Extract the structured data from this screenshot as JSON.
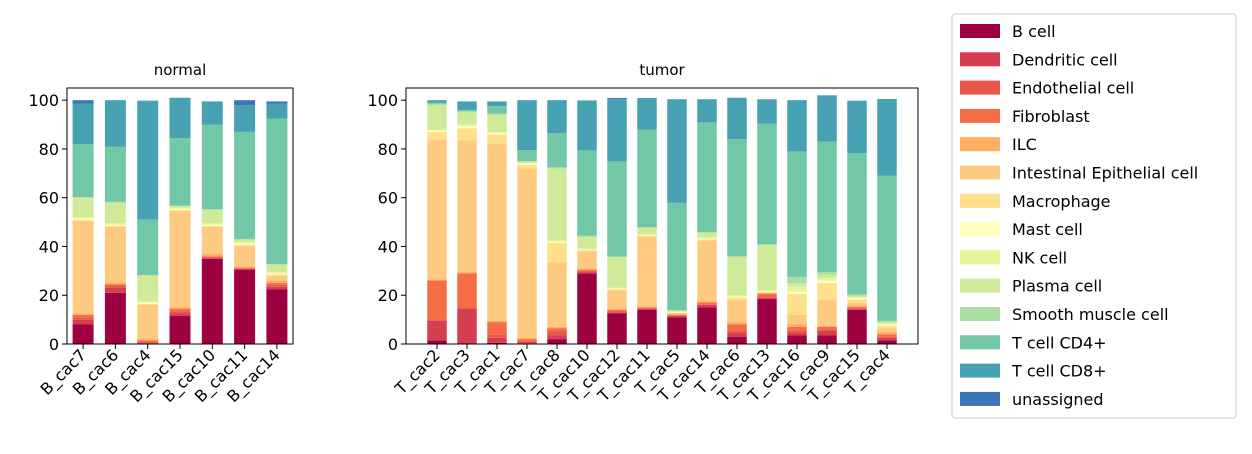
{
  "chart_data": [
    {
      "type": "bar",
      "stacked": true,
      "title": "normal",
      "xlabel": "",
      "ylabel": "",
      "ylim": [
        0,
        105
      ],
      "yticks": [
        0,
        20,
        40,
        60,
        80,
        100
      ],
      "grid": false,
      "categories": [
        "B_cac7",
        "B_cac6",
        "B_cac4",
        "B_cac15",
        "B_cac10",
        "B_cac11",
        "B_cac14"
      ],
      "series": [
        {
          "name": "B cell",
          "values": [
            8,
            21,
            0.3,
            11.5,
            35,
            30.5,
            22.5
          ]
        },
        {
          "name": "Dendritic cell",
          "values": [
            2,
            2,
            0,
            1,
            0,
            0.3,
            1
          ]
        },
        {
          "name": "Endothelial cell",
          "values": [
            1,
            1,
            0.5,
            1,
            0.5,
            0.2,
            1
          ]
        },
        {
          "name": "Fibroblast",
          "values": [
            1,
            0.5,
            0.7,
            1,
            0.5,
            0.3,
            0.5
          ]
        },
        {
          "name": "ILC",
          "values": [
            0.5,
            0.5,
            0.5,
            0.5,
            1,
            0.5,
            1
          ]
        },
        {
          "name": "Intestinal Epithelial cell",
          "values": [
            38,
            23,
            14,
            39.5,
            11,
            8.5,
            2
          ]
        },
        {
          "name": "Macrophage",
          "values": [
            0.5,
            0.5,
            0.5,
            0.5,
            0.5,
            0.5,
            0.5
          ]
        },
        {
          "name": "Mast cell",
          "values": [
            0.5,
            0.5,
            0.5,
            0.5,
            0.5,
            0.5,
            0.5
          ]
        },
        {
          "name": "NK cell",
          "values": [
            0.5,
            0.5,
            0.5,
            0.5,
            0.5,
            0.5,
            0.5
          ]
        },
        {
          "name": "Plasma cell",
          "values": [
            8,
            8.5,
            10.5,
            0.5,
            5.5,
            1,
            3
          ]
        },
        {
          "name": "Smooth muscle cell",
          "values": [
            0.3,
            0.3,
            0.3,
            0.3,
            0.3,
            0.3,
            0.3
          ]
        },
        {
          "name": "T cell CD4+",
          "values": [
            21.7,
            22.7,
            22.8,
            27.7,
            34.7,
            43.9,
            59.7
          ]
        },
        {
          "name": "T cell CD8+",
          "values": [
            16.5,
            19,
            48.5,
            16.5,
            9.5,
            11,
            6
          ]
        },
        {
          "name": "unassigned",
          "values": [
            1.5,
            0,
            0.2,
            0,
            0,
            2,
            1
          ]
        }
      ],
      "colors": [
        "#9e0142",
        "#d53e4f",
        "#e8574c",
        "#f46d43",
        "#fdae61",
        "#fec980",
        "#fee08b",
        "#ffffbf",
        "#e6f598",
        "#cfeb9a",
        "#abdda4",
        "#72c7a6",
        "#46a1b3",
        "#3d74b5"
      ]
    },
    {
      "type": "bar",
      "stacked": true,
      "title": "tumor",
      "xlabel": "",
      "ylabel": "",
      "ylim": [
        0,
        105
      ],
      "yticks": [
        0,
        20,
        40,
        60,
        80,
        100
      ],
      "grid": false,
      "categories": [
        "T_cac2",
        "T_cac3",
        "T_cac1",
        "T_cac7",
        "T_cac8",
        "T_cac10",
        "T_cac12",
        "T_cac11",
        "T_cac5",
        "T_cac14",
        "T_cac6",
        "T_cac13",
        "T_cac16",
        "T_cac9",
        "T_cac15",
        "T_cac4"
      ],
      "series": [
        {
          "name": "B cell",
          "values": [
            1.5,
            0,
            0.5,
            0.3,
            2,
            29,
            12.5,
            14,
            11,
            15,
            3,
            18.5,
            3.5,
            3.5,
            14,
            1.5
          ]
        },
        {
          "name": "Dendritic cell",
          "values": [
            8,
            14.5,
            2,
            0.5,
            1.5,
            0.5,
            0.5,
            0.5,
            0.5,
            1,
            1.5,
            0.5,
            1,
            2,
            0.5,
            1
          ]
        },
        {
          "name": "Endothelial cell",
          "values": [
            0.5,
            0.5,
            1.5,
            0.2,
            2,
            0.5,
            0.5,
            0.3,
            0.3,
            0.3,
            1,
            0.5,
            1,
            0.5,
            0.3,
            0.5
          ]
        },
        {
          "name": "Fibroblast",
          "values": [
            16,
            14,
            5,
            1,
            1,
            0.5,
            0.5,
            0.2,
            0.2,
            0.7,
            2.5,
            1,
            1.5,
            1,
            0.5,
            1
          ]
        },
        {
          "name": "ILC",
          "values": [
            0.5,
            0.5,
            0.5,
            0.5,
            0.5,
            0.5,
            0.5,
            0.5,
            0.5,
            0.5,
            1,
            0.5,
            1,
            0.5,
            0.5,
            1
          ]
        },
        {
          "name": "Intestinal Epithelial cell",
          "values": [
            57.5,
            54,
            72.5,
            69.5,
            26.5,
            7,
            7.5,
            28.5,
            0,
            25,
            9,
            0,
            4,
            10.5,
            1,
            1.5
          ]
        },
        {
          "name": "Macrophage",
          "values": [
            3,
            5,
            4,
            1.5,
            8,
            0.5,
            0.5,
            0.5,
            0.3,
            0.5,
            1,
            0.5,
            8.5,
            7,
            1.5,
            1
          ]
        },
        {
          "name": "Mast cell",
          "values": [
            0.5,
            1,
            0.5,
            0.5,
            0.5,
            0.3,
            0.3,
            0.3,
            0.2,
            0.3,
            0.5,
            0.3,
            1,
            1,
            0.5,
            0.5
          ]
        },
        {
          "name": "NK cell",
          "values": [
            0.5,
            0.5,
            0.5,
            0.3,
            0.5,
            0.3,
            0.3,
            0.3,
            0.3,
            0.3,
            0.5,
            0.3,
            2,
            1,
            0.5,
            0.5
          ]
        },
        {
          "name": "Plasma cell",
          "values": [
            10,
            5,
            7,
            0.5,
            29.5,
            5,
            12.5,
            2.5,
            0.3,
            2,
            15.5,
            18.5,
            1.5,
            1.5,
            0.5,
            0.5
          ]
        },
        {
          "name": "Smooth muscle cell",
          "values": [
            0.5,
            0.5,
            0.5,
            0.2,
            0.5,
            0.3,
            0.3,
            0.3,
            0.3,
            0.3,
            0.5,
            0.3,
            2.5,
            1,
            0.5,
            0.5
          ]
        },
        {
          "name": "T cell CD4+",
          "values": [
            0.5,
            0.5,
            3,
            4.5,
            14,
            35,
            39,
            40,
            44,
            45,
            48,
            49.5,
            51.5,
            53.5,
            58,
            59.5
          ]
        },
        {
          "name": "T cell CD8+",
          "values": [
            1,
            3.5,
            2,
            20.5,
            13.5,
            20.5,
            25.5,
            13,
            42.5,
            9.5,
            17,
            10,
            21,
            19,
            21.5,
            31.5
          ]
        },
        {
          "name": "unassigned",
          "values": [
            0,
            0,
            0,
            0,
            0,
            0,
            0.5,
            0,
            0,
            0,
            0,
            0,
            0,
            0,
            0,
            0
          ]
        }
      ],
      "colors": [
        "#9e0142",
        "#d53e4f",
        "#e8574c",
        "#f46d43",
        "#fdae61",
        "#fec980",
        "#fee08b",
        "#ffffbf",
        "#e6f598",
        "#cfeb9a",
        "#abdda4",
        "#72c7a6",
        "#46a1b3",
        "#3d74b5"
      ]
    }
  ],
  "legend": {
    "placement": "right",
    "entries": [
      {
        "label": "B cell",
        "color": "#9e0142"
      },
      {
        "label": "Dendritic cell",
        "color": "#d53e4f"
      },
      {
        "label": "Endothelial cell",
        "color": "#e8574c"
      },
      {
        "label": "Fibroblast",
        "color": "#f46d43"
      },
      {
        "label": "ILC",
        "color": "#fdae61"
      },
      {
        "label": "Intestinal Epithelial cell",
        "color": "#fec980"
      },
      {
        "label": "Macrophage",
        "color": "#fee08b"
      },
      {
        "label": "Mast cell",
        "color": "#ffffbf"
      },
      {
        "label": "NK cell",
        "color": "#e6f598"
      },
      {
        "label": "Plasma cell",
        "color": "#cfeb9a"
      },
      {
        "label": "Smooth muscle cell",
        "color": "#abdda4"
      },
      {
        "label": "T cell CD4+",
        "color": "#72c7a6"
      },
      {
        "label": "T cell CD8+",
        "color": "#46a1b3"
      },
      {
        "label": "unassigned",
        "color": "#3d74b5"
      }
    ]
  }
}
